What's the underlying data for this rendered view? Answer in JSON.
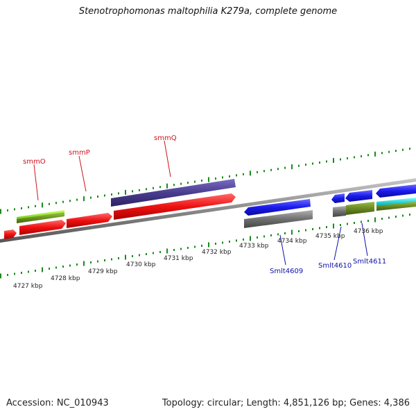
{
  "title": "Stenotrophomonas maltophilia K279a, complete genome",
  "footer": {
    "accession": "Accession: NC_010943",
    "summary": "Topology: circular; Length: 4,851,126 bp; Genes: 4,386"
  },
  "ticks": [
    "4727 kbp",
    "4728 kbp",
    "4729 kbp",
    "4730 kbp",
    "4731 kbp",
    "4732 kbp",
    "4733 kbp",
    "4734 kbp",
    "4735 kbp",
    "4736 kbp"
  ],
  "gene_labels": {
    "smmO": "smmO",
    "smmP": "smmP",
    "smmQ": "smmQ",
    "smlt4609": "Smlt4609",
    "smlt4610": "Smlt4610",
    "smlt4611": "Smlt4611"
  },
  "colors": {
    "red_gene": "#ee1111",
    "purple_gene": "#4a3d90",
    "lime_gene": "#88dd22",
    "olive_gene": "#6a8a22",
    "blue_gene": "#1a1aee",
    "gray_gene": "#707070",
    "cyan_gene": "#22cccc",
    "tick_green": "#1a8a1a",
    "backbone": "#888888"
  }
}
